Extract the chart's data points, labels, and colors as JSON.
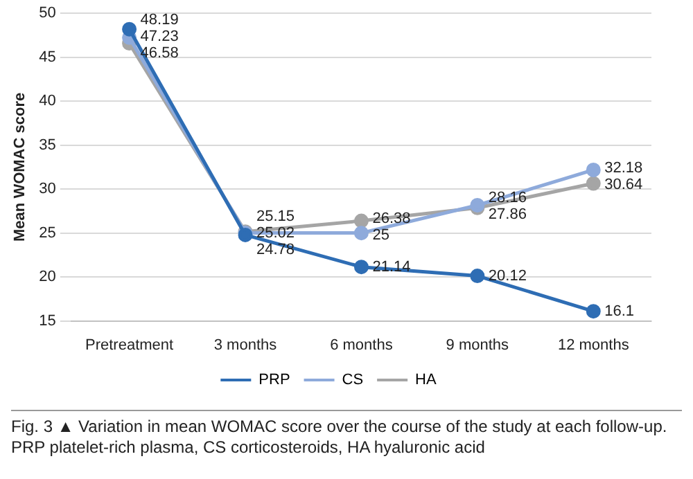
{
  "chart_data": {
    "type": "line",
    "ylabel": "Mean WOMAC score",
    "categories": [
      "Pretreatment",
      "3 months",
      "6 months",
      "9 months",
      "12 months"
    ],
    "series": [
      {
        "name": "PRP",
        "color": "#2e6db4",
        "values": [
          48.19,
          24.78,
          21.14,
          20.12,
          16.1
        ]
      },
      {
        "name": "CS",
        "color": "#8eaadb",
        "values": [
          47.23,
          25.02,
          25,
          28.16,
          32.18
        ]
      },
      {
        "name": "HA",
        "color": "#a5a5a5",
        "values": [
          46.58,
          25.15,
          26.38,
          27.86,
          30.64
        ]
      }
    ],
    "ylim": [
      15,
      50
    ],
    "yticks": [
      15,
      20,
      25,
      30,
      35,
      40,
      45,
      50
    ],
    "grid": "y",
    "legend": "bottom",
    "marker": "circle",
    "data_labels": true,
    "annotations": [
      "Fig. 3 ▲ Variation in mean WOMAC score over the course of the study at each follow-up. PRP platelet-rich plasma, CS corticosteroids, HA hyaluronic acid"
    ]
  }
}
